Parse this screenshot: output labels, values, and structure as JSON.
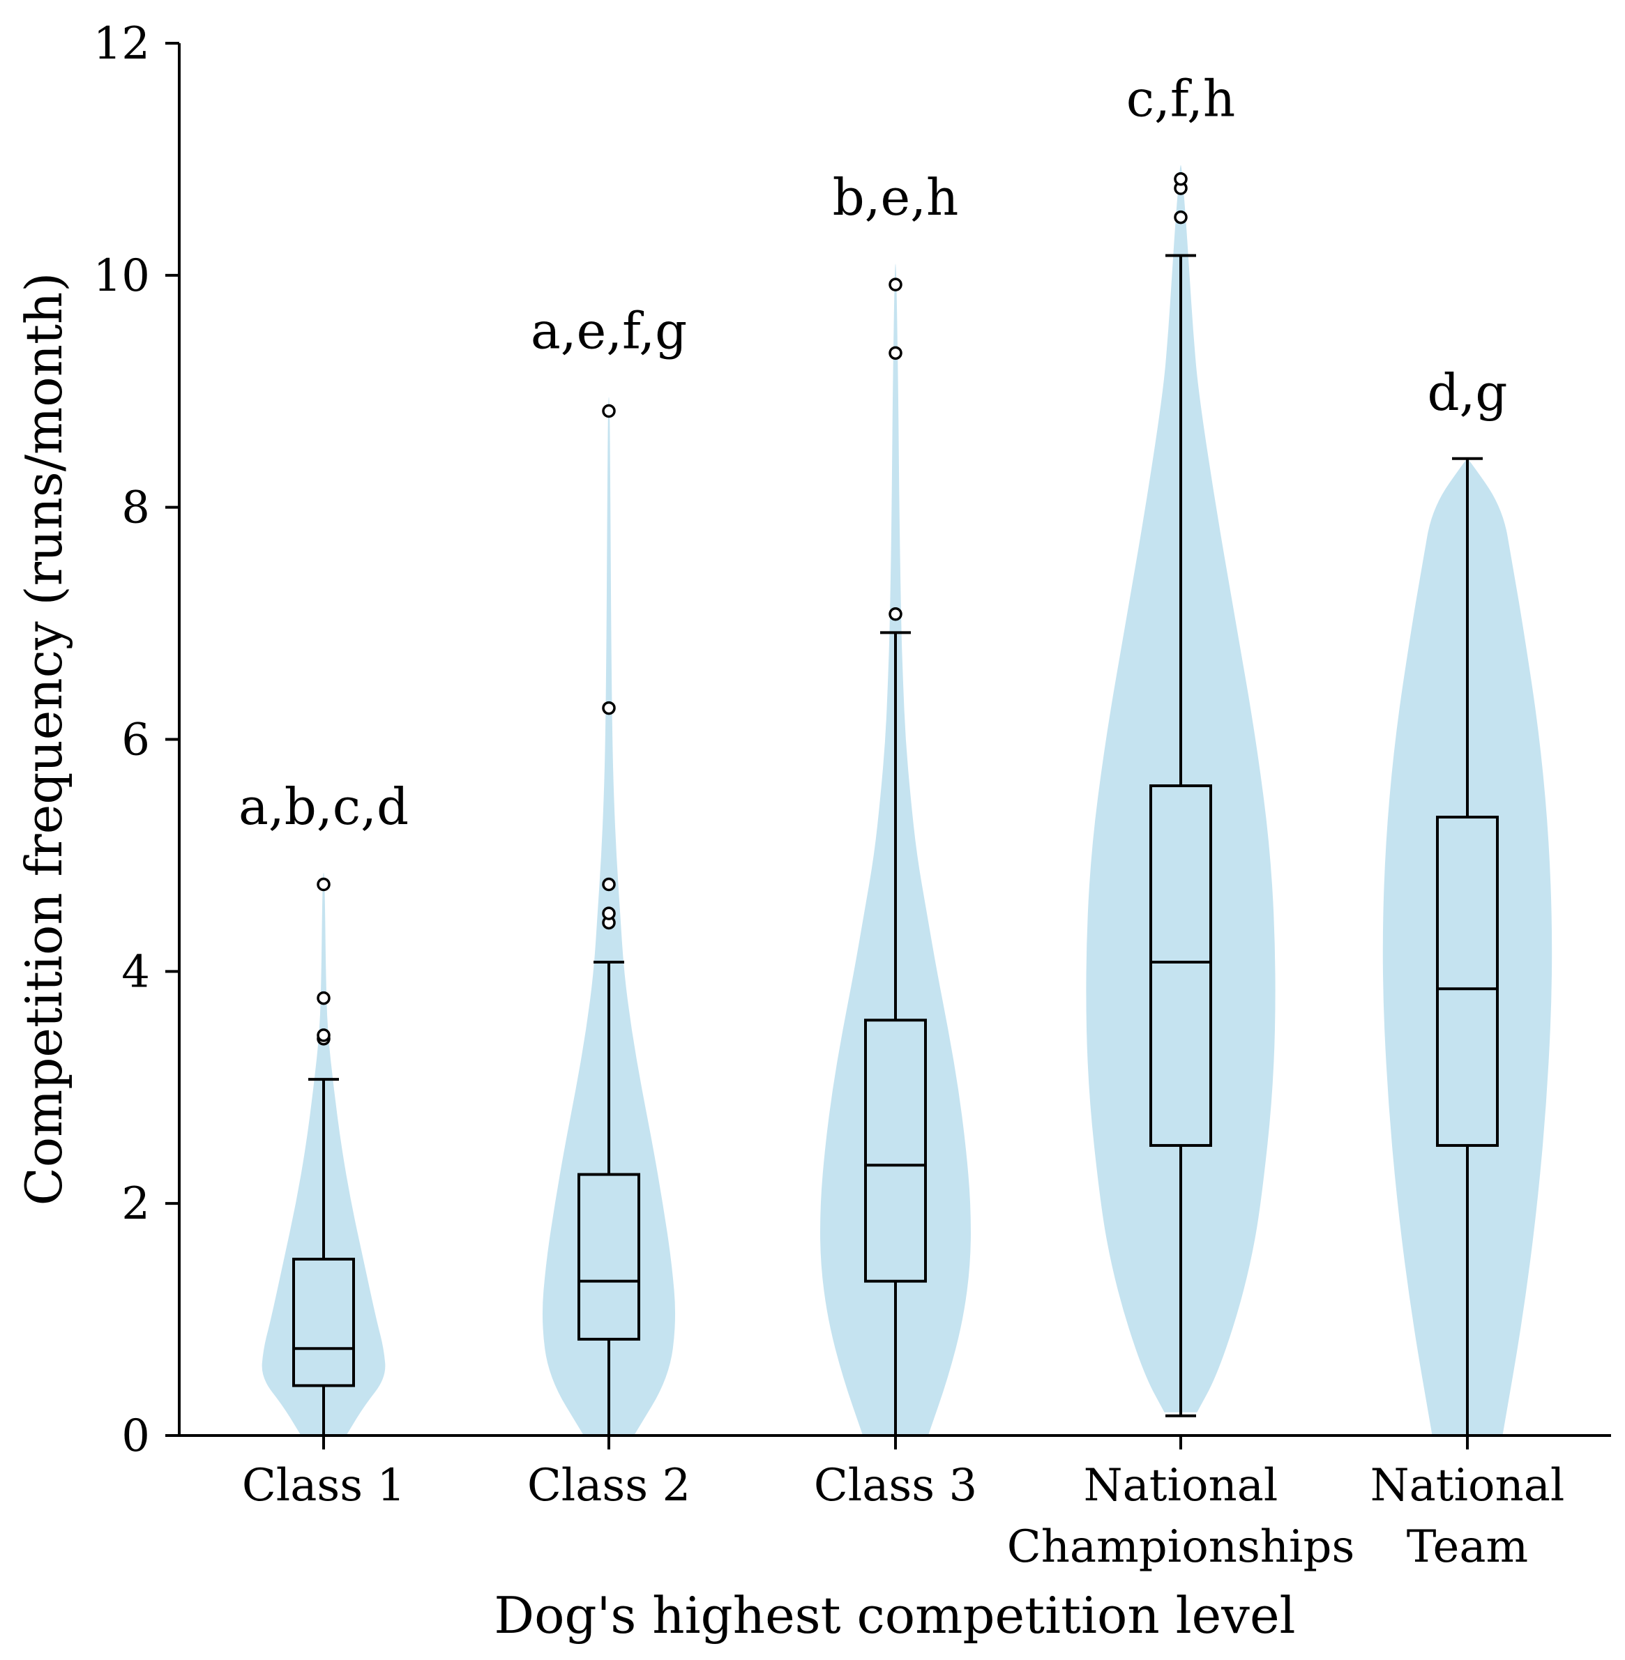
{
  "chart_data": {
    "type": "violin-box",
    "title": "",
    "xlabel": "Dog's highest competition level",
    "ylabel": "Competition frequency (runs/month)",
    "ylim": [
      0,
      12
    ],
    "yticks": [
      0,
      2,
      4,
      6,
      8,
      10,
      12
    ],
    "grid": false,
    "colors": {
      "violin": "#c5e3f0",
      "box_fill": "#c5e3f0",
      "stroke": "#000000"
    },
    "groups": [
      {
        "name": "Class 1",
        "label_lines": [
          "Class 1"
        ],
        "significance": "a,b,c,d",
        "min": 0,
        "q1": 0.43,
        "median": 0.75,
        "q3": 1.52,
        "whisker_high": 3.07,
        "outliers": [
          3.42,
          3.45,
          3.77,
          4.75
        ],
        "violin_top": 4.85,
        "violin_profile": [
          [
            0,
            0.18
          ],
          [
            0.25,
            0.32
          ],
          [
            0.5,
            0.5
          ],
          [
            0.75,
            0.48
          ],
          [
            1,
            0.42
          ],
          [
            1.5,
            0.32
          ],
          [
            2,
            0.22
          ],
          [
            2.5,
            0.14
          ],
          [
            3,
            0.08
          ],
          [
            3.5,
            0.03
          ],
          [
            4,
            0.018
          ],
          [
            4.5,
            0.012
          ]
        ]
      },
      {
        "name": "Class 2",
        "label_lines": [
          "Class 2"
        ],
        "significance": "a,e,f,g",
        "min": 0,
        "q1": 0.83,
        "median": 1.33,
        "q3": 2.25,
        "whisker_high": 4.08,
        "outliers": [
          4.42,
          4.5,
          4.75,
          6.27,
          8.83
        ],
        "violin_top": 8.95,
        "violin_profile": [
          [
            0,
            0.2
          ],
          [
            0.5,
            0.48
          ],
          [
            1,
            0.54
          ],
          [
            1.5,
            0.5
          ],
          [
            2,
            0.43
          ],
          [
            2.5,
            0.35
          ],
          [
            3,
            0.26
          ],
          [
            3.5,
            0.18
          ],
          [
            4,
            0.12
          ],
          [
            4.5,
            0.09
          ],
          [
            5,
            0.06
          ],
          [
            5.5,
            0.04
          ],
          [
            6,
            0.028
          ],
          [
            7,
            0.018
          ],
          [
            8,
            0.013
          ]
        ]
      },
      {
        "name": "Class 3",
        "label_lines": [
          "Class 3"
        ],
        "significance": "b,e,h",
        "min": 0,
        "q1": 1.33,
        "median": 2.33,
        "q3": 3.58,
        "whisker_high": 6.92,
        "outliers": [
          7.08,
          9.33,
          9.92
        ],
        "violin_top": 10.1,
        "violin_profile": [
          [
            0,
            0.26
          ],
          [
            0.5,
            0.42
          ],
          [
            1,
            0.54
          ],
          [
            1.5,
            0.6
          ],
          [
            2,
            0.6
          ],
          [
            2.5,
            0.56
          ],
          [
            3,
            0.5
          ],
          [
            3.5,
            0.42
          ],
          [
            4,
            0.33
          ],
          [
            4.5,
            0.25
          ],
          [
            5,
            0.17
          ],
          [
            5.5,
            0.12
          ],
          [
            6,
            0.08
          ],
          [
            6.5,
            0.06
          ],
          [
            7,
            0.045
          ],
          [
            8,
            0.03
          ],
          [
            9,
            0.022
          ]
        ]
      },
      {
        "name": "National Championships",
        "label_lines": [
          "National",
          "Championships"
        ],
        "significance": "c,f,h",
        "min": 0.17,
        "q1": 2.5,
        "median": 4.08,
        "q3": 5.6,
        "whisker_high": 10.17,
        "outliers": [
          10.5,
          10.75,
          10.83
        ],
        "violin_top": 10.95,
        "violin_profile": [
          [
            0.2,
            0.13
          ],
          [
            0.5,
            0.28
          ],
          [
            1,
            0.44
          ],
          [
            1.5,
            0.56
          ],
          [
            2,
            0.64
          ],
          [
            3,
            0.74
          ],
          [
            4,
            0.76
          ],
          [
            5,
            0.72
          ],
          [
            6,
            0.6
          ],
          [
            7,
            0.44
          ],
          [
            8,
            0.28
          ],
          [
            9,
            0.14
          ],
          [
            9.5,
            0.1
          ],
          [
            10,
            0.07
          ],
          [
            10.5,
            0.04
          ]
        ]
      },
      {
        "name": "National Team",
        "label_lines": [
          "National",
          "Team"
        ],
        "significance": "d,g",
        "min": 0,
        "q1": 2.5,
        "median": 3.85,
        "q3": 5.33,
        "whisker_high": 8.42,
        "outliers": [],
        "violin_top": 8.42,
        "violin_profile": [
          [
            0,
            0.28
          ],
          [
            1,
            0.44
          ],
          [
            2,
            0.56
          ],
          [
            3,
            0.64
          ],
          [
            4,
            0.68
          ],
          [
            5,
            0.66
          ],
          [
            6,
            0.58
          ],
          [
            7,
            0.44
          ],
          [
            7.5,
            0.36
          ],
          [
            8,
            0.28
          ]
        ]
      }
    ]
  }
}
